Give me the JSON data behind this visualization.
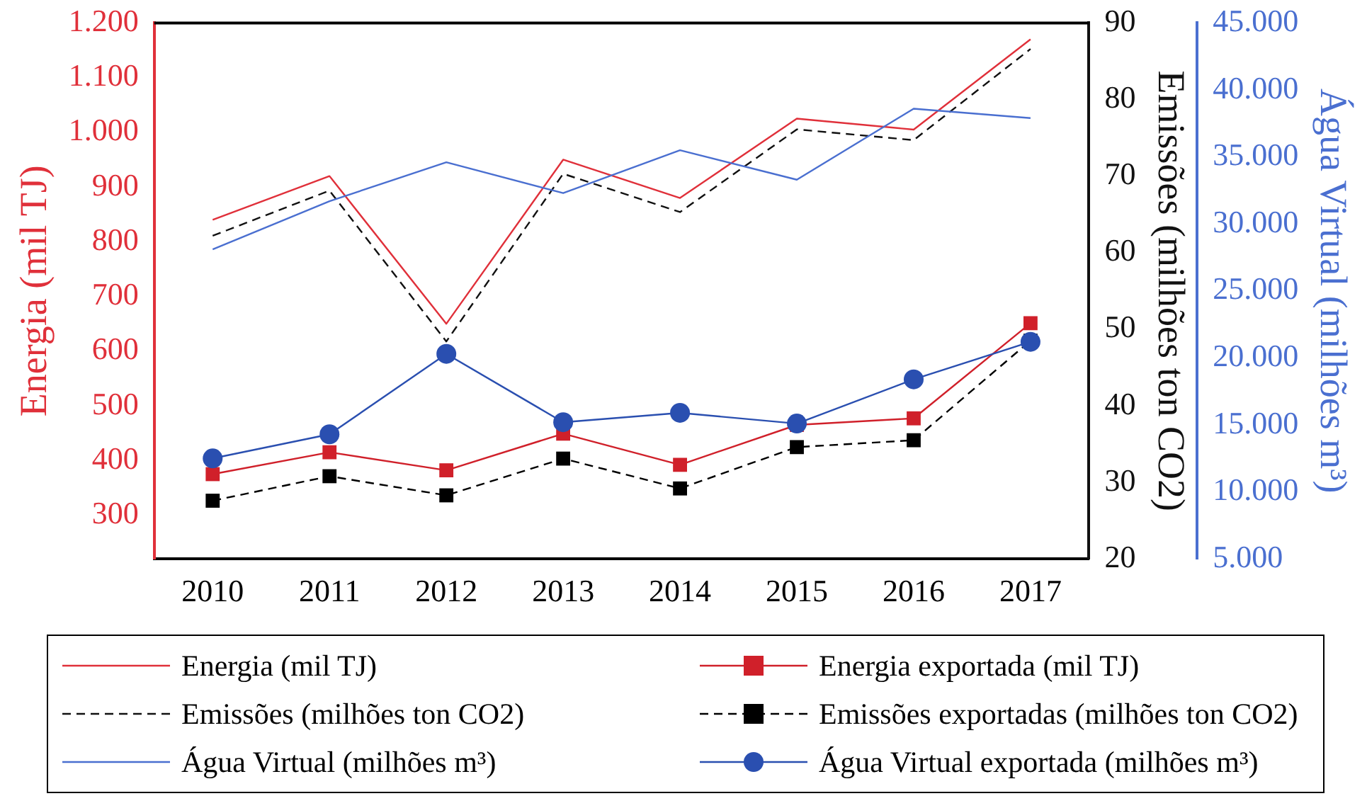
{
  "chart_data": {
    "type": "line",
    "categories": [
      "2010",
      "2011",
      "2012",
      "2013",
      "2014",
      "2015",
      "2016",
      "2017"
    ],
    "ylabel": "Energia (mil TJ)",
    "y2label": "Emissões (milhões ton CO2)",
    "y3label": "Água Virtual (milhões m³)",
    "ylim": [
      220,
      1200
    ],
    "yticks": [
      {
        "value": 300,
        "label": "300"
      },
      {
        "value": 400,
        "label": "400"
      },
      {
        "value": 500,
        "label": "500"
      },
      {
        "value": 600,
        "label": "600"
      },
      {
        "value": 700,
        "label": "700"
      },
      {
        "value": 800,
        "label": "800"
      },
      {
        "value": 900,
        "label": "900"
      },
      {
        "value": 1000,
        "label": "1.000"
      },
      {
        "value": 1100,
        "label": "1.100"
      },
      {
        "value": 1200,
        "label": "1.200"
      }
    ],
    "y2lim": [
      20,
      90
    ],
    "y2ticks": [
      20,
      30,
      40,
      50,
      60,
      70,
      80,
      90
    ],
    "y3lim": [
      5000,
      45000
    ],
    "y3ticks": [
      {
        "value": 5000,
        "label": "5.000"
      },
      {
        "value": 10000,
        "label": "10.000"
      },
      {
        "value": 15000,
        "label": "15.000"
      },
      {
        "value": 20000,
        "label": "20.000"
      },
      {
        "value": 25000,
        "label": "25.000"
      },
      {
        "value": 30000,
        "label": "30.000"
      },
      {
        "value": 35000,
        "label": "35.000"
      },
      {
        "value": 40000,
        "label": "40.000"
      },
      {
        "value": 45000,
        "label": "45.000"
      }
    ],
    "grid": false,
    "legend": "bottom",
    "series": [
      {
        "name": "Energia (mil TJ)",
        "color": "#e0303a",
        "marker": "none",
        "line_style": "solid",
        "values": [
          840,
          920,
          650,
          950,
          880,
          1025,
          1005,
          1170
        ]
      },
      {
        "name": "Energia exportada (mil TJ)",
        "color": "#d0202a",
        "marker": "square",
        "line_style": "solid",
        "values": [
          375,
          415,
          382,
          449,
          392,
          465,
          477,
          651
        ]
      },
      {
        "name": "Emissões (milhões ton CO2)",
        "color": "#111111",
        "axis": "y2",
        "marker": "none",
        "line_style": "dashed",
        "values": [
          62.2,
          68.1,
          48.4,
          70.3,
          65.3,
          76.1,
          74.7,
          86.6
        ]
      },
      {
        "name": "Emissões exportadas (milhões ton CO2)",
        "color": "#000000",
        "axis": "y2",
        "marker": "square",
        "line_style": "dashed",
        "values": [
          27.6,
          30.8,
          28.3,
          33.1,
          29.2,
          34.6,
          35.5,
          48.5
        ]
      },
      {
        "name": "Água Virtual (milhões m³)",
        "color": "#4a6fd0",
        "axis": "y3",
        "marker": "none",
        "line_style": "solid",
        "values": [
          28100,
          31700,
          34600,
          32300,
          35500,
          33300,
          38600,
          37900
        ]
      },
      {
        "name": "Água Virtual exportada (milhões m³)",
        "color": "#2a4fb0",
        "axis": "y3",
        "marker": "circle",
        "line_style": "solid",
        "values": [
          12500,
          14300,
          20300,
          15200,
          15900,
          15100,
          18400,
          21200
        ]
      }
    ]
  }
}
